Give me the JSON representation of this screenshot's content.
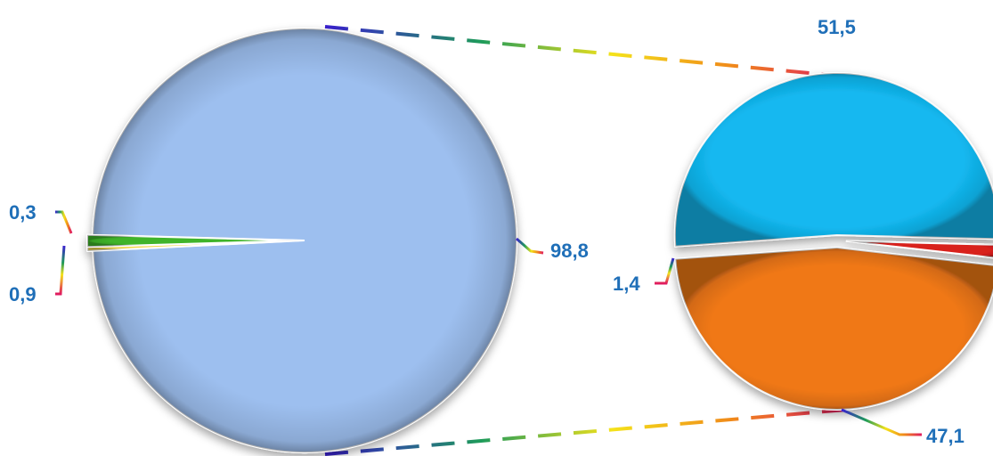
{
  "chart_data": [
    {
      "type": "pie",
      "slices": [
        {
          "value": 98.8,
          "label": "98,8",
          "color": "#9dbfef"
        },
        {
          "value": 0.3,
          "label": "0,3",
          "color": "#f2d84a"
        },
        {
          "value": 0.9,
          "label": "0,9",
          "color": "#3fb42a"
        }
      ]
    },
    {
      "type": "pie",
      "slices": [
        {
          "value": 51.5,
          "label": "51,5",
          "color": "#12b8f0"
        },
        {
          "value": 1.4,
          "label": "1,4",
          "color": "#d8201c"
        },
        {
          "value": 47.1,
          "label": "47,1",
          "color": "#f07818"
        }
      ]
    }
  ],
  "colors": {
    "label_text": "#1f6fb8",
    "connector_gradient": [
      "#3a1fd0",
      "#1e9b5a",
      "#f4e21a",
      "#f08a1a",
      "#e01a60"
    ]
  }
}
